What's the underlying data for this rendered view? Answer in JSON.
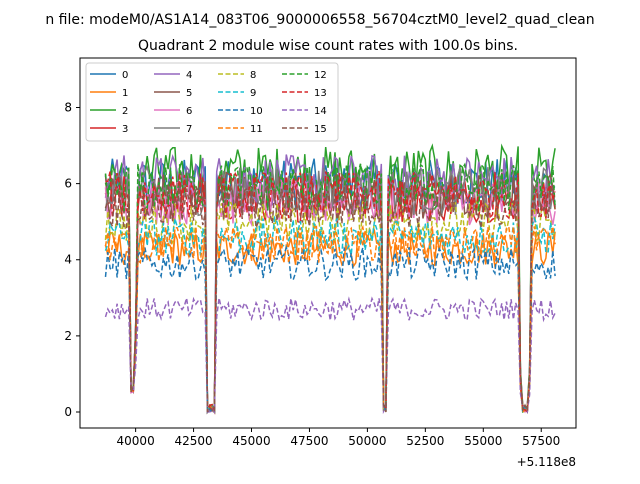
{
  "figure": {
    "suptitle": "n file: modeM0/AS1A14_083T06_9000006558_56704cztM0_level2_quad_clean",
    "title": "Quadrant 2 module wise count rates with 100.0s bins.",
    "offset_label": "+5.118e8"
  },
  "chart_data": {
    "type": "line",
    "title": "Quadrant 2 module wise count rates with 100.0s bins.",
    "xlabel": "",
    "ylabel": "",
    "x_offset": 511800000,
    "xlim": [
      37600,
      59000
    ],
    "ylim": [
      -0.42,
      9.3
    ],
    "x_ticks": [
      40000,
      42500,
      45000,
      47500,
      50000,
      52500,
      55000,
      57500
    ],
    "y_ticks": [
      0,
      2,
      4,
      6,
      8
    ],
    "x_start": 38700,
    "x_end": 58100,
    "bin": 100,
    "gaps": [
      [
        39700,
        40050,
        0.5
      ],
      [
        43000,
        43500,
        0.0
      ],
      [
        50600,
        50900,
        0.0
      ],
      [
        56500,
        57100,
        0.0
      ]
    ],
    "legend": {
      "location": "upper-left",
      "columns": 4
    },
    "series": [
      {
        "name": "0",
        "level": 6.0,
        "color": "#1f77b4",
        "dash": "solid"
      },
      {
        "name": "1",
        "level": 4.3,
        "color": "#ff7f0e",
        "dash": "solid"
      },
      {
        "name": "2",
        "level": 6.3,
        "color": "#2ca02c",
        "dash": "solid"
      },
      {
        "name": "3",
        "level": 5.6,
        "color": "#d62728",
        "dash": "solid"
      },
      {
        "name": "4",
        "level": 6.1,
        "color": "#9467bd",
        "dash": "solid"
      },
      {
        "name": "5",
        "level": 5.7,
        "color": "#8c564b",
        "dash": "solid"
      },
      {
        "name": "6",
        "level": 5.5,
        "color": "#e377c2",
        "dash": "solid"
      },
      {
        "name": "7",
        "level": 5.8,
        "color": "#7f7f7f",
        "dash": "solid"
      },
      {
        "name": "8",
        "level": 5.0,
        "color": "#bcbd22",
        "dash": "dashed"
      },
      {
        "name": "9",
        "level": 4.6,
        "color": "#17becf",
        "dash": "dashed"
      },
      {
        "name": "10",
        "level": 3.9,
        "color": "#1f77b4",
        "dash": "dashed"
      },
      {
        "name": "11",
        "level": 4.4,
        "color": "#ff7f0e",
        "dash": "dashed"
      },
      {
        "name": "12",
        "level": 5.9,
        "color": "#2ca02c",
        "dash": "dashed"
      },
      {
        "name": "13",
        "level": 5.7,
        "color": "#d62728",
        "dash": "dashed"
      },
      {
        "name": "14",
        "level": 2.7,
        "color": "#9467bd",
        "dash": "dashed"
      },
      {
        "name": "15",
        "level": 5.4,
        "color": "#8c564b",
        "dash": "dashed"
      }
    ]
  }
}
